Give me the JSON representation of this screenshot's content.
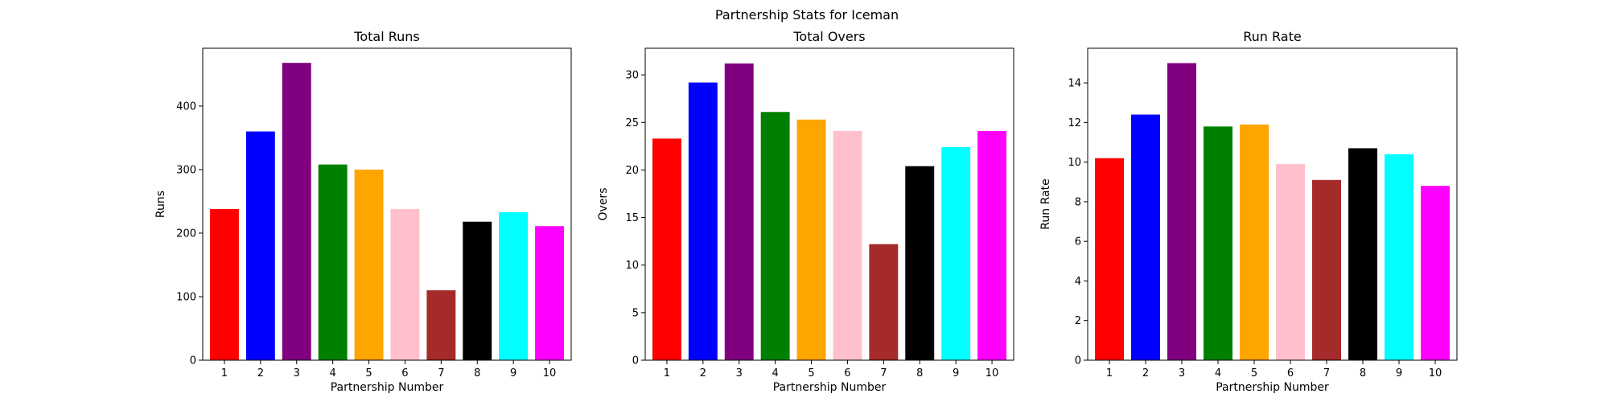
{
  "figure": {
    "suptitle": "Partnership Stats for Iceman"
  },
  "colors": [
    "#ff0000",
    "#0000ff",
    "#800080",
    "#008000",
    "#ffa500",
    "#ffc0cb",
    "#a52a2a",
    "#000000",
    "#00ffff",
    "#ff00ff"
  ],
  "chart_data": [
    {
      "type": "bar",
      "title": "Total Runs",
      "xlabel": "Partnership Number",
      "ylabel": "Runs",
      "categories": [
        "1",
        "2",
        "3",
        "4",
        "5",
        "6",
        "7",
        "8",
        "9",
        "10"
      ],
      "values": [
        238,
        360,
        468,
        308,
        300,
        238,
        110,
        218,
        233,
        211
      ],
      "ylim": [
        0,
        491
      ],
      "yticks": [
        0,
        100,
        200,
        300,
        400
      ],
      "grid": false
    },
    {
      "type": "bar",
      "title": "Total Overs",
      "xlabel": "Partnership Number",
      "ylabel": "Overs",
      "categories": [
        "1",
        "2",
        "3",
        "4",
        "5",
        "6",
        "7",
        "8",
        "9",
        "10"
      ],
      "values": [
        23.3,
        29.2,
        31.2,
        26.1,
        25.3,
        24.1,
        12.2,
        20.4,
        22.4,
        24.1
      ],
      "ylim": [
        0,
        32.8
      ],
      "yticks": [
        0,
        5,
        10,
        15,
        20,
        25,
        30
      ],
      "grid": false
    },
    {
      "type": "bar",
      "title": "Run Rate",
      "xlabel": "Partnership Number",
      "ylabel": "Run Rate",
      "categories": [
        "1",
        "2",
        "3",
        "4",
        "5",
        "6",
        "7",
        "8",
        "9",
        "10"
      ],
      "values": [
        10.2,
        12.4,
        15.0,
        11.8,
        11.9,
        9.9,
        9.1,
        10.7,
        10.4,
        8.8
      ],
      "ylim": [
        0,
        15.75
      ],
      "yticks": [
        0,
        2,
        4,
        6,
        8,
        10,
        12,
        14
      ],
      "grid": false
    }
  ]
}
